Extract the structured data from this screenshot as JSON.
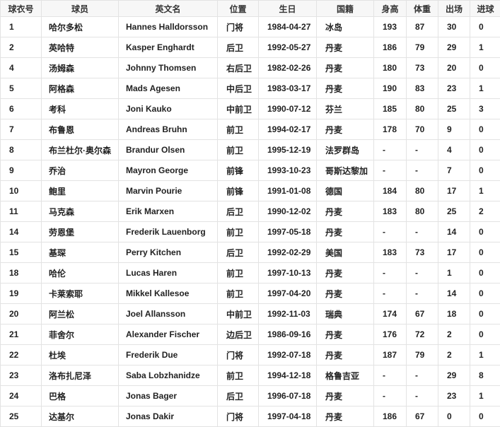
{
  "table": {
    "headers": [
      "球衣号",
      "球员",
      "英文名",
      "位置",
      "生日",
      "国籍",
      "身高",
      "体重",
      "出场",
      "进球"
    ],
    "rows": [
      [
        "1",
        "哈尔多松",
        "Hannes Halldorsson",
        "门将",
        "1984-04-27",
        "冰岛",
        "193",
        "87",
        "30",
        "0"
      ],
      [
        "2",
        "英哈特",
        "Kasper Enghardt",
        "后卫",
        "1992-05-27",
        "丹麦",
        "186",
        "79",
        "29",
        "1"
      ],
      [
        "4",
        "汤姆森",
        "Johnny Thomsen",
        "右后卫",
        "1982-02-26",
        "丹麦",
        "180",
        "73",
        "20",
        "0"
      ],
      [
        "5",
        "阿格森",
        "Mads Agesen",
        "中后卫",
        "1983-03-17",
        "丹麦",
        "190",
        "83",
        "23",
        "1"
      ],
      [
        "6",
        "考科",
        "Joni Kauko",
        "中前卫",
        "1990-07-12",
        "芬兰",
        "185",
        "80",
        "25",
        "3"
      ],
      [
        "7",
        "布鲁恩",
        "Andreas Bruhn",
        "前卫",
        "1994-02-17",
        "丹麦",
        "178",
        "70",
        "9",
        "0"
      ],
      [
        "8",
        "布兰杜尔·奥尔森",
        "Brandur Olsen",
        "前卫",
        "1995-12-19",
        "法罗群岛",
        "-",
        "-",
        "4",
        "0"
      ],
      [
        "9",
        "乔治",
        "Mayron George",
        "前锋",
        "1993-10-23",
        "哥斯达黎加",
        "-",
        "-",
        "7",
        "0"
      ],
      [
        "10",
        "鲍里",
        "Marvin Pourie",
        "前锋",
        "1991-01-08",
        "德国",
        "184",
        "80",
        "17",
        "1"
      ],
      [
        "11",
        "马克森",
        "Erik Marxen",
        "后卫",
        "1990-12-02",
        "丹麦",
        "183",
        "80",
        "25",
        "2"
      ],
      [
        "14",
        "劳恩堡",
        "Frederik Lauenborg",
        "前卫",
        "1997-05-18",
        "丹麦",
        "-",
        "-",
        "14",
        "0"
      ],
      [
        "15",
        "基琛",
        "Perry Kitchen",
        "后卫",
        "1992-02-29",
        "美国",
        "183",
        "73",
        "17",
        "0"
      ],
      [
        "18",
        "哈伦",
        "Lucas Haren",
        "前卫",
        "1997-10-13",
        "丹麦",
        "-",
        "-",
        "1",
        "0"
      ],
      [
        "19",
        "卡莱索耶",
        "Mikkel Kallesoe",
        "前卫",
        "1997-04-20",
        "丹麦",
        "-",
        "-",
        "14",
        "0"
      ],
      [
        "20",
        "阿兰松",
        "Joel Allansson",
        "中前卫",
        "1992-11-03",
        "瑞典",
        "174",
        "67",
        "18",
        "0"
      ],
      [
        "21",
        "菲舍尔",
        "Alexander Fischer",
        "边后卫",
        "1986-09-16",
        "丹麦",
        "176",
        "72",
        "2",
        "0"
      ],
      [
        "22",
        "杜埃",
        "Frederik Due",
        "门将",
        "1992-07-18",
        "丹麦",
        "187",
        "79",
        "2",
        "1"
      ],
      [
        "23",
        "洛布扎尼泽",
        "Saba Lobzhanidze",
        "前卫",
        "1994-12-18",
        "格鲁吉亚",
        "-",
        "-",
        "29",
        "8"
      ],
      [
        "24",
        "巴格",
        "Jonas Bager",
        "后卫",
        "1996-07-18",
        "丹麦",
        "-",
        "-",
        "23",
        "1"
      ],
      [
        "25",
        "达基尔",
        "Jonas Dakir",
        "门将",
        "1997-04-18",
        "丹麦",
        "186",
        "67",
        "0",
        "0"
      ]
    ]
  }
}
